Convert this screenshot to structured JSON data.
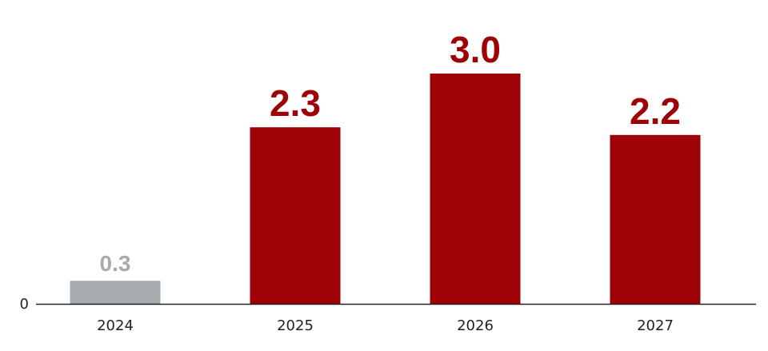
{
  "chart_data": {
    "type": "bar",
    "categories": [
      "2024",
      "2025",
      "2026",
      "2027"
    ],
    "values": [
      0.3,
      2.3,
      3.0,
      2.2
    ],
    "value_labels": [
      "0.3",
      "2.3",
      "3.0",
      "2.2"
    ],
    "bar_colors": [
      "#a6abaf",
      "#9e0206",
      "#9e0206",
      "#9e0206"
    ],
    "label_colors": [
      "#a6abaf",
      "#9e0206",
      "#9e0206",
      "#9e0206"
    ],
    "y_ticks": [
      0
    ],
    "y_tick_labels": [
      "0"
    ],
    "ylim": [
      0,
      3.0
    ],
    "title": "",
    "xlabel": "",
    "ylabel": "",
    "grid": false,
    "legend": "none",
    "axis_color": "#222222"
  }
}
